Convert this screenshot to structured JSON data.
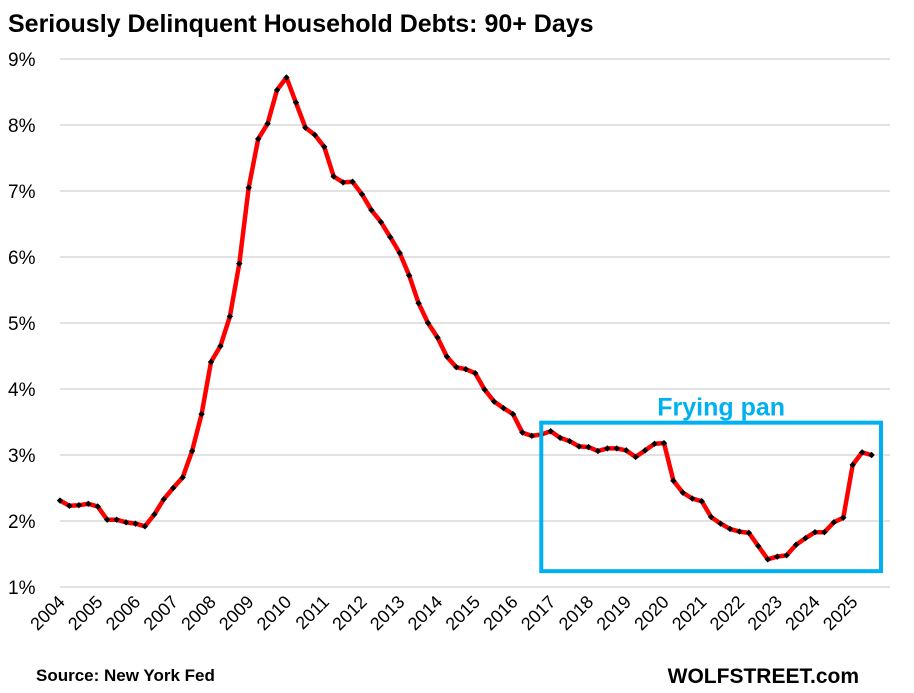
{
  "chart_data": {
    "type": "line",
    "title": "Seriously Delinquent Household Debts: 90+ Days",
    "xlabel": "",
    "ylabel": "",
    "ylim": [
      1,
      9
    ],
    "xlim": [
      2004,
      2025.75
    ],
    "grid": true,
    "yticks": [
      "1%",
      "2%",
      "3%",
      "4%",
      "5%",
      "6%",
      "7%",
      "8%",
      "9%"
    ],
    "xticks": [
      "2004",
      "2005",
      "2006",
      "2007",
      "2008",
      "2009",
      "2010",
      "2011",
      "2012",
      "2013",
      "2014",
      "2015",
      "2016",
      "2017",
      "2018",
      "2019",
      "2020",
      "2021",
      "2022",
      "2023",
      "2024",
      "2025"
    ],
    "line_color": "#ff0000",
    "marker_color": "#000000",
    "series": [
      {
        "x": [
          2004.0,
          2004.25,
          2004.5,
          2004.75,
          2005.0,
          2005.25,
          2005.5,
          2005.75,
          2006.0,
          2006.25,
          2006.5,
          2006.75,
          2007.0,
          2007.25,
          2007.5,
          2007.75,
          2008.0,
          2008.25,
          2008.5,
          2008.75,
          2009.0,
          2009.25,
          2009.5,
          2009.75,
          2010.0,
          2010.25,
          2010.5,
          2010.75,
          2011.0,
          2011.25,
          2011.5,
          2011.75,
          2012.0,
          2012.25,
          2012.5,
          2012.75,
          2013.0,
          2013.25,
          2013.5,
          2013.75,
          2014.0,
          2014.25,
          2014.5,
          2014.75,
          2015.0,
          2015.25,
          2015.5,
          2015.75,
          2016.0,
          2016.25,
          2016.5,
          2016.75,
          2017.0,
          2017.25,
          2017.5,
          2017.75,
          2018.0,
          2018.25,
          2018.5,
          2018.75,
          2019.0,
          2019.25,
          2019.5,
          2019.75,
          2020.0,
          2020.25,
          2020.5,
          2020.75,
          2021.0,
          2021.25,
          2021.5,
          2021.75,
          2022.0,
          2022.25,
          2022.5,
          2022.75,
          2023.0,
          2023.25,
          2023.5,
          2023.75,
          2024.0,
          2024.25,
          2024.5,
          2024.75,
          2025.0,
          2025.25,
          2025.5
        ],
        "values": [
          2.31,
          2.23,
          2.24,
          2.26,
          2.22,
          2.02,
          2.02,
          1.98,
          1.96,
          1.92,
          2.1,
          2.33,
          2.5,
          2.66,
          3.06,
          3.62,
          4.41,
          4.65,
          5.1,
          5.9,
          7.05,
          7.79,
          8.02,
          8.53,
          8.72,
          8.34,
          7.96,
          7.85,
          7.67,
          7.22,
          7.13,
          7.14,
          6.95,
          6.71,
          6.53,
          6.3,
          6.06,
          5.72,
          5.3,
          5.0,
          4.78,
          4.49,
          4.33,
          4.3,
          4.24,
          3.99,
          3.81,
          3.71,
          3.62,
          3.34,
          3.29,
          3.31,
          3.36,
          3.26,
          3.21,
          3.13,
          3.12,
          3.06,
          3.1,
          3.1,
          3.07,
          2.97,
          3.07,
          3.17,
          3.18,
          2.61,
          2.43,
          2.34,
          2.3,
          2.06,
          1.96,
          1.88,
          1.84,
          1.82,
          1.62,
          1.42,
          1.46,
          1.48,
          1.64,
          1.74,
          1.83,
          1.83,
          1.98,
          2.05,
          2.85,
          3.04,
          3.0
        ]
      }
    ],
    "annotations": [
      {
        "text": "Frying pan",
        "color": "#00b0f0",
        "box": {
          "x0": 2016.75,
          "x1": 2025.75,
          "y0": 1.24,
          "y1": 3.49
        }
      }
    ],
    "source": "Source: New York Fed",
    "brand": "WOLFSTREET.com"
  }
}
